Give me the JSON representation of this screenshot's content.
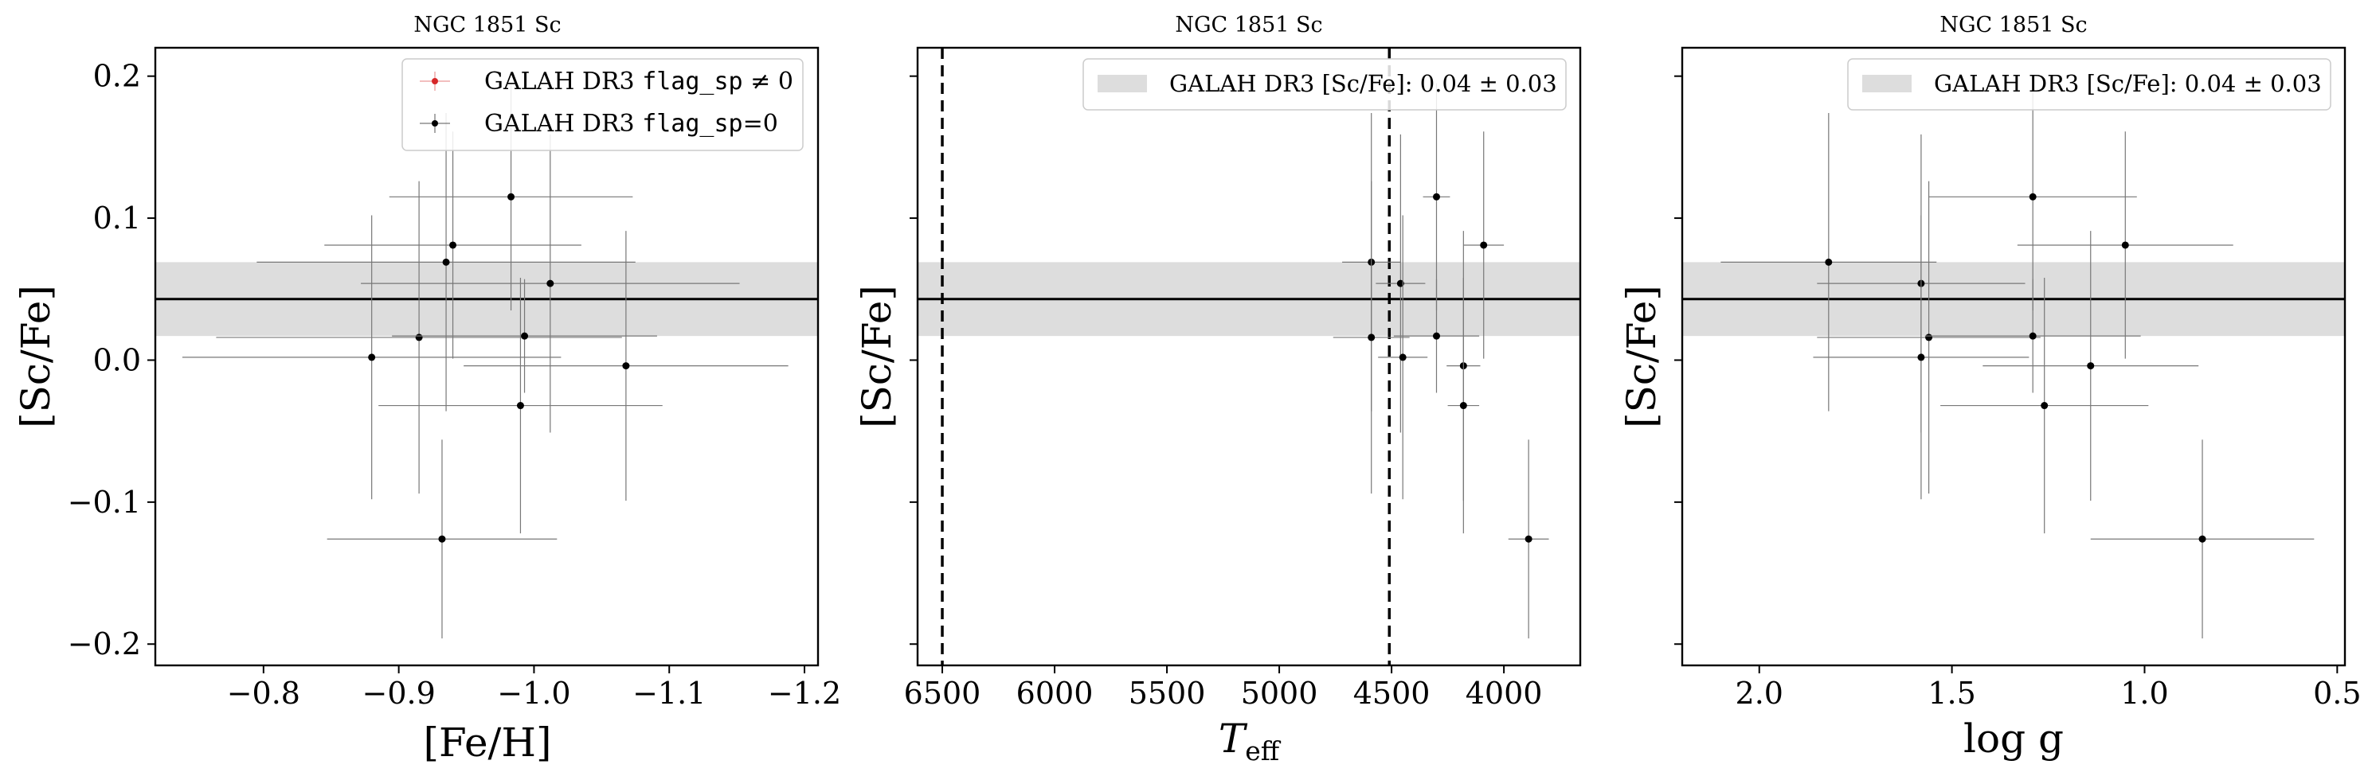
{
  "figure": {
    "panels": [
      {
        "title": "NGC 1851 Sc",
        "xlabel": "[Fe/H]",
        "ylabel": "[Sc/Fe]"
      },
      {
        "title": "NGC 1851 Sc",
        "xlabel_main": "T",
        "xlabel_sub": "eff",
        "ylabel": "[Sc/Fe]"
      },
      {
        "title": "NGC 1851 Sc",
        "xlabel": "log g",
        "ylabel": "[Sc/Fe]"
      }
    ]
  },
  "chart_data": [
    {
      "type": "scatter",
      "title": "NGC 1851 Sc",
      "xlabel": "[Fe/H]",
      "ylabel": "[Sc/Fe]",
      "x_inverted": true,
      "xlim": [
        -0.72,
        -1.21
      ],
      "ylim": [
        -0.215,
        0.22
      ],
      "xticks": [
        -0.8,
        -0.9,
        -1.0,
        -1.1,
        -1.2
      ],
      "xtick_labels": [
        "−0.8",
        "−0.9",
        "−1.0",
        "−1.1",
        "−1.2"
      ],
      "yticks": [
        -0.2,
        -0.1,
        0.0,
        0.1,
        0.2
      ],
      "ytick_labels": [
        "−0.2",
        "−0.1",
        "0.0",
        "0.1",
        "0.2"
      ],
      "legend": {
        "placement": "top-right",
        "entries": [
          {
            "label_pre": "GALAH DR3 ",
            "label_code": "flag_sp",
            "label_post": " ≠ 0",
            "color": "#d62728"
          },
          {
            "label_pre": "GALAH DR3 ",
            "label_code": "flag_sp",
            "label_post": "=0",
            "color": "#000000"
          }
        ]
      },
      "hline": {
        "y": 0.043,
        "band": [
          0.017,
          0.069
        ]
      },
      "series": [
        {
          "name": "GALAH DR3 flag_sp=0",
          "color": "#000000",
          "points": [
            {
              "x": -0.983,
              "y": 0.115,
              "xerr": 0.09,
              "yerr": 0.08
            },
            {
              "x": -0.94,
              "y": 0.081,
              "xerr": 0.095,
              "yerr": 0.08
            },
            {
              "x": -0.935,
              "y": 0.069,
              "xerr": 0.14,
              "yerr": 0.105
            },
            {
              "x": -1.012,
              "y": 0.054,
              "xerr": 0.14,
              "yerr": 0.105
            },
            {
              "x": -0.915,
              "y": 0.016,
              "xerr": 0.15,
              "yerr": 0.11
            },
            {
              "x": -0.993,
              "y": 0.017,
              "xerr": 0.098,
              "yerr": 0.04
            },
            {
              "x": -0.88,
              "y": 0.002,
              "xerr": 0.14,
              "yerr": 0.1
            },
            {
              "x": -1.068,
              "y": -0.004,
              "xerr": 0.12,
              "yerr": 0.095
            },
            {
              "x": -0.99,
              "y": -0.032,
              "xerr": 0.105,
              "yerr": 0.09
            },
            {
              "x": -0.932,
              "y": -0.126,
              "xerr": 0.085,
              "yerr": 0.07
            }
          ]
        }
      ]
    },
    {
      "type": "scatter",
      "title": "NGC 1851 Sc",
      "xlabel": "Teff",
      "ylabel": "[Sc/Fe]",
      "x_inverted": true,
      "xlim": [
        6610,
        3660
      ],
      "ylim": [
        -0.215,
        0.22
      ],
      "xticks": [
        6500,
        6000,
        5500,
        5000,
        4500,
        4000
      ],
      "xtick_labels": [
        "6500",
        "6000",
        "5500",
        "5000",
        "4500",
        "4000"
      ],
      "yticks": [
        -0.2,
        -0.1,
        0.0,
        0.1,
        0.2
      ],
      "legend": {
        "placement": "top-right",
        "entries": [
          {
            "label_pre": "GALAH DR3 [Sc/Fe]: ",
            "label_math": "0.04 ± 0.03",
            "color": "#dddddd"
          }
        ]
      },
      "vlines": [
        6500,
        4510
      ],
      "hline": {
        "y": 0.043,
        "band": [
          0.017,
          0.069
        ]
      },
      "series": [
        {
          "name": "GALAH DR3 flag_sp=0",
          "color": "#000000",
          "points": [
            {
              "x": 4300,
              "y": 0.115,
              "xerr": 60,
              "yerr": 0.08
            },
            {
              "x": 4090,
              "y": 0.081,
              "xerr": 90,
              "yerr": 0.08
            },
            {
              "x": 4590,
              "y": 0.069,
              "xerr": 130,
              "yerr": 0.105
            },
            {
              "x": 4460,
              "y": 0.054,
              "xerr": 110,
              "yerr": 0.105
            },
            {
              "x": 4590,
              "y": 0.016,
              "xerr": 170,
              "yerr": 0.11
            },
            {
              "x": 4300,
              "y": 0.017,
              "xerr": 190,
              "yerr": 0.04
            },
            {
              "x": 4450,
              "y": 0.002,
              "xerr": 110,
              "yerr": 0.1
            },
            {
              "x": 4180,
              "y": -0.004,
              "xerr": 75,
              "yerr": 0.095
            },
            {
              "x": 4180,
              "y": -0.032,
              "xerr": 70,
              "yerr": 0.09
            },
            {
              "x": 3890,
              "y": -0.126,
              "xerr": 90,
              "yerr": 0.07
            }
          ]
        }
      ]
    },
    {
      "type": "scatter",
      "title": "NGC 1851 Sc",
      "xlabel": "log g",
      "ylabel": "[Sc/Fe]",
      "x_inverted": true,
      "xlim": [
        2.2,
        0.48
      ],
      "ylim": [
        -0.215,
        0.22
      ],
      "xticks": [
        2.0,
        1.5,
        1.0,
        0.5
      ],
      "xtick_labels": [
        "2.0",
        "1.5",
        "1.0",
        "0.5"
      ],
      "yticks": [
        -0.2,
        -0.1,
        0.0,
        0.1,
        0.2
      ],
      "legend": {
        "placement": "top-right",
        "entries": [
          {
            "label_pre": "GALAH DR3 [Sc/Fe]: ",
            "label_math": "0.04 ± 0.03",
            "color": "#dddddd"
          }
        ]
      },
      "hline": {
        "y": 0.043,
        "band": [
          0.017,
          0.069
        ]
      },
      "series": [
        {
          "name": "GALAH DR3 flag_sp=0",
          "color": "#000000",
          "points": [
            {
              "x": 1.29,
              "y": 0.115,
              "xerr": 0.27,
              "yerr": 0.08
            },
            {
              "x": 1.05,
              "y": 0.081,
              "xerr": 0.28,
              "yerr": 0.08
            },
            {
              "x": 1.82,
              "y": 0.069,
              "xerr": 0.28,
              "yerr": 0.105
            },
            {
              "x": 1.58,
              "y": 0.054,
              "xerr": 0.27,
              "yerr": 0.105
            },
            {
              "x": 1.56,
              "y": 0.016,
              "xerr": 0.29,
              "yerr": 0.11
            },
            {
              "x": 1.29,
              "y": 0.017,
              "xerr": 0.28,
              "yerr": 0.04
            },
            {
              "x": 1.58,
              "y": 0.002,
              "xerr": 0.28,
              "yerr": 0.1
            },
            {
              "x": 1.14,
              "y": -0.004,
              "xerr": 0.28,
              "yerr": 0.095
            },
            {
              "x": 1.26,
              "y": -0.032,
              "xerr": 0.27,
              "yerr": 0.09
            },
            {
              "x": 0.85,
              "y": -0.126,
              "xerr": 0.29,
              "yerr": 0.07
            }
          ]
        }
      ]
    }
  ]
}
